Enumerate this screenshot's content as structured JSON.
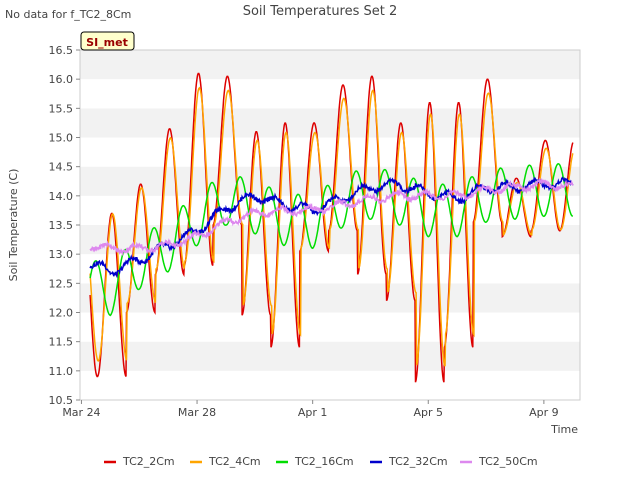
{
  "chart_data": {
    "type": "line",
    "title": "Soil Temperatures Set 2",
    "no_data_note": "No data for f_TC2_8Cm",
    "badge": "SI_met",
    "xlabel": "Time",
    "ylabel": "Soil Temperature (C)",
    "x_unit": "days from Mar 24",
    "xlim": [
      -0.05,
      17.25
    ],
    "ylim": [
      10.5,
      16.5
    ],
    "x_ticks": [
      {
        "value": 0,
        "label": "Mar 24"
      },
      {
        "value": 4,
        "label": "Mar 28"
      },
      {
        "value": 8,
        "label": "Apr 1"
      },
      {
        "value": 12,
        "label": "Apr 5"
      },
      {
        "value": 16,
        "label": "Apr 9"
      }
    ],
    "y_ticks": [
      10.5,
      11.0,
      11.5,
      12.0,
      12.5,
      13.0,
      13.5,
      14.0,
      14.5,
      15.0,
      15.5,
      16.0,
      16.5
    ],
    "grid": "horizontal bands",
    "legend_position": "bottom",
    "colors": {
      "TC2_2Cm": "#dd0000",
      "TC2_4Cm": "#ffa500",
      "TC2_16Cm": "#00dd00",
      "TC2_32Cm": "#0000cc",
      "TC2_50Cm": "#dd88ee"
    },
    "series": [
      {
        "name": "TC2_2Cm",
        "color": "#dd0000",
        "x": [
          0.3,
          0.6,
          1.0,
          1.3,
          1.6,
          1.9,
          2.2,
          2.6,
          3.0,
          3.3,
          3.8,
          4.1,
          4.4,
          4.8,
          5.1,
          5.4,
          5.8,
          6.1,
          6.4,
          6.8,
          7.1,
          7.4,
          7.8,
          8.1,
          8.4,
          8.8,
          9.1,
          9.4,
          9.8,
          10.1,
          10.4,
          10.8,
          11.1,
          11.4,
          11.8,
          12.1,
          12.4,
          12.8,
          13.1,
          13.4,
          13.8,
          14.1,
          14.4,
          14.8,
          15.1,
          15.4,
          15.8,
          16.1,
          16.4,
          16.8,
          17.0
        ]
      },
      {
        "name": "TC2_4Cm",
        "color": "#ffa500"
      },
      {
        "name": "TC2_16Cm",
        "color": "#00dd00"
      },
      {
        "name": "TC2_32Cm",
        "color": "#0000cc"
      },
      {
        "name": "TC2_50Cm",
        "color": "#dd88ee"
      }
    ]
  }
}
